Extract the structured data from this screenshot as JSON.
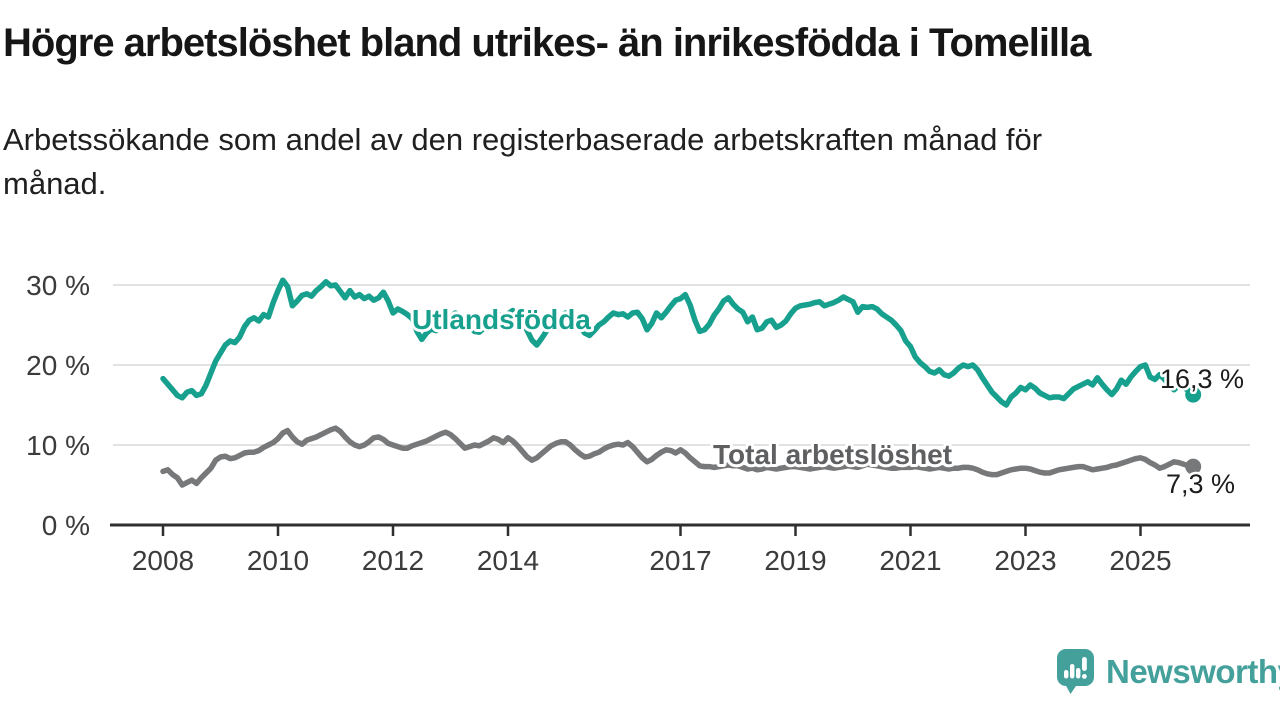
{
  "header": {
    "title": "Högre arbetslöshet bland utrikes- än inrikesfödda i Tomelilla",
    "subtitle": "Arbetssökande som andel av den registerbaserade arbetskraften månad för månad."
  },
  "chart_data": {
    "type": "line",
    "title": "Högre arbetslöshet bland utrikes- än inrikesfödda i Tomelilla",
    "xlabel": "",
    "ylabel": "Arbetssökande som andel av den registerbaserade arbetskraften",
    "x_start_year": 2008,
    "points_per_year": 12,
    "ylim": [
      0,
      32
    ],
    "grid": true,
    "legend_position": "inline-labels",
    "axes": {
      "y_ticks": [
        {
          "v": 0,
          "label": "0 %"
        },
        {
          "v": 10,
          "label": "10 %"
        },
        {
          "v": 20,
          "label": "20 %"
        },
        {
          "v": 30,
          "label": "30 %"
        }
      ],
      "x_ticks": [
        {
          "year": 2008,
          "label": "2008"
        },
        {
          "year": 2010,
          "label": "2010"
        },
        {
          "year": 2012,
          "label": "2012"
        },
        {
          "year": 2014,
          "label": "2014"
        },
        {
          "year": 2017,
          "label": "2017"
        },
        {
          "year": 2019,
          "label": "2019"
        },
        {
          "year": 2021,
          "label": "2021"
        },
        {
          "year": 2023,
          "label": "2023"
        },
        {
          "year": 2025,
          "label": "2025"
        }
      ]
    },
    "series": [
      {
        "name": "Utlandsfödda",
        "color": "#17a08d",
        "label_color": "#17a08d",
        "end_label": "16,3 %",
        "end_value": 16.3,
        "values": [
          18.3,
          17.6,
          16.9,
          16.2,
          15.9,
          16.6,
          16.8,
          16.2,
          16.4,
          17.5,
          19.0,
          20.5,
          21.5,
          22.5,
          23.0,
          22.8,
          23.5,
          24.8,
          25.6,
          25.9,
          25.5,
          26.3,
          26.0,
          27.8,
          29.3,
          30.6,
          29.8,
          27.4,
          28.0,
          28.7,
          28.9,
          28.6,
          29.3,
          29.8,
          30.4,
          29.9,
          30.0,
          29.2,
          28.4,
          29.3,
          28.5,
          28.8,
          28.3,
          28.6,
          28.1,
          28.4,
          29.1,
          28.0,
          26.5,
          27.0,
          26.7,
          26.3,
          25.8,
          24.2,
          23.2,
          24.0,
          24.5,
          24.3,
          24.8,
          25.3,
          26.0,
          26.5,
          26.2,
          25.5,
          24.8,
          24.2,
          24.1,
          24.6,
          25.2,
          25.8,
          26.3,
          26.0,
          26.4,
          26.8,
          26.3,
          25.4,
          24.3,
          23.1,
          22.5,
          23.3,
          24.2,
          25.0,
          25.6,
          26.1,
          26.5,
          26.2,
          25.6,
          24.8,
          24.0,
          23.7,
          24.3,
          25.0,
          25.4,
          26.0,
          26.5,
          26.3,
          26.4,
          26.0,
          26.5,
          26.6,
          25.8,
          24.4,
          25.2,
          26.5,
          25.9,
          26.6,
          27.4,
          28.1,
          28.3,
          28.8,
          27.5,
          25.6,
          24.2,
          24.4,
          25.1,
          26.2,
          27.0,
          28.0,
          28.4,
          27.6,
          27.0,
          26.6,
          25.4,
          26.0,
          24.4,
          24.6,
          25.4,
          25.6,
          24.7,
          25.0,
          25.5,
          26.4,
          27.1,
          27.4,
          27.5,
          27.6,
          27.8,
          27.9,
          27.4,
          27.6,
          27.8,
          28.1,
          28.5,
          28.2,
          27.9,
          26.6,
          27.3,
          27.2,
          27.3,
          27.0,
          26.4,
          26.0,
          25.6,
          25.0,
          24.3,
          23.0,
          22.3,
          21.0,
          20.3,
          19.8,
          19.2,
          19.0,
          19.4,
          18.8,
          18.6,
          19.0,
          19.6,
          20.0,
          19.8,
          20.0,
          19.4,
          18.4,
          17.5,
          16.6,
          16.0,
          15.4,
          15.0,
          16.0,
          16.5,
          17.2,
          16.9,
          17.5,
          17.1,
          16.5,
          16.2,
          15.9,
          16.0,
          16.0,
          15.8,
          16.4,
          17.0,
          17.3,
          17.6,
          17.9,
          17.5,
          18.4,
          17.6,
          16.9,
          16.3,
          17.0,
          18.1,
          17.6,
          18.5,
          19.2,
          19.8,
          20.0,
          18.5,
          18.2,
          18.8,
          18.2,
          17.5,
          16.9,
          17.5,
          17.2,
          16.8,
          16.3
        ]
      },
      {
        "name": "Total arbetslöshet",
        "color": "#77787a",
        "label_color": "#5e5f61",
        "end_label": "7,3 %",
        "end_value": 7.3,
        "values": [
          6.7,
          6.9,
          6.3,
          5.9,
          5.0,
          5.3,
          5.6,
          5.2,
          5.9,
          6.5,
          7.1,
          8.1,
          8.5,
          8.6,
          8.3,
          8.4,
          8.7,
          9.0,
          9.1,
          9.1,
          9.3,
          9.7,
          10.0,
          10.3,
          10.8,
          11.5,
          11.8,
          11.0,
          10.4,
          10.1,
          10.6,
          10.8,
          11.0,
          11.3,
          11.6,
          11.9,
          12.1,
          11.7,
          11.0,
          10.4,
          10.0,
          9.8,
          10.0,
          10.4,
          10.9,
          11.0,
          10.7,
          10.2,
          10.0,
          9.8,
          9.6,
          9.6,
          9.9,
          10.1,
          10.3,
          10.5,
          10.8,
          11.1,
          11.4,
          11.6,
          11.3,
          10.8,
          10.2,
          9.6,
          9.8,
          10.0,
          9.9,
          10.2,
          10.5,
          10.9,
          10.7,
          10.3,
          10.9,
          10.5,
          9.9,
          9.2,
          8.5,
          8.1,
          8.4,
          8.9,
          9.4,
          9.9,
          10.2,
          10.4,
          10.4,
          10.0,
          9.4,
          8.9,
          8.5,
          8.6,
          8.9,
          9.1,
          9.5,
          9.8,
          10.0,
          10.1,
          10.0,
          10.3,
          9.8,
          9.1,
          8.4,
          7.9,
          8.2,
          8.7,
          9.1,
          9.4,
          9.3,
          9.0,
          9.4,
          9.0,
          8.4,
          7.9,
          7.4,
          7.3,
          7.3,
          7.2,
          7.3,
          7.4,
          7.5,
          7.4,
          7.4,
          7.2,
          7.0,
          7.1,
          6.9,
          7.0,
          7.2,
          7.1,
          7.0,
          7.1,
          7.2,
          7.3,
          7.3,
          7.2,
          7.1,
          7.0,
          7.1,
          7.2,
          7.3,
          7.2,
          7.1,
          7.2,
          7.3,
          7.4,
          7.3,
          7.2,
          7.4,
          7.6,
          7.5,
          7.4,
          7.3,
          7.2,
          7.1,
          7.1,
          7.2,
          7.2,
          7.2,
          7.3,
          7.2,
          7.1,
          7.0,
          7.1,
          7.2,
          7.1,
          7.0,
          7.1,
          7.1,
          7.2,
          7.2,
          7.1,
          6.9,
          6.6,
          6.4,
          6.3,
          6.3,
          6.5,
          6.7,
          6.9,
          7.0,
          7.1,
          7.1,
          7.0,
          6.8,
          6.6,
          6.5,
          6.5,
          6.7,
          6.9,
          7.0,
          7.1,
          7.2,
          7.3,
          7.3,
          7.1,
          6.9,
          7.0,
          7.1,
          7.2,
          7.4,
          7.5,
          7.7,
          7.9,
          8.1,
          8.3,
          8.4,
          8.2,
          7.8,
          7.5,
          7.1,
          7.3,
          7.6,
          7.9,
          7.8,
          7.6,
          7.4,
          7.3
        ]
      }
    ]
  },
  "footer": {
    "brand": "Newsworthy"
  },
  "colors": {
    "accent_teal": "#17a08d",
    "line_gray": "#77787a",
    "label_gray": "#5e5f61",
    "brand_teal": "#43a09a",
    "gridline": "#d9d9d9",
    "axis": "#2f2f2f",
    "text": "#161616"
  }
}
